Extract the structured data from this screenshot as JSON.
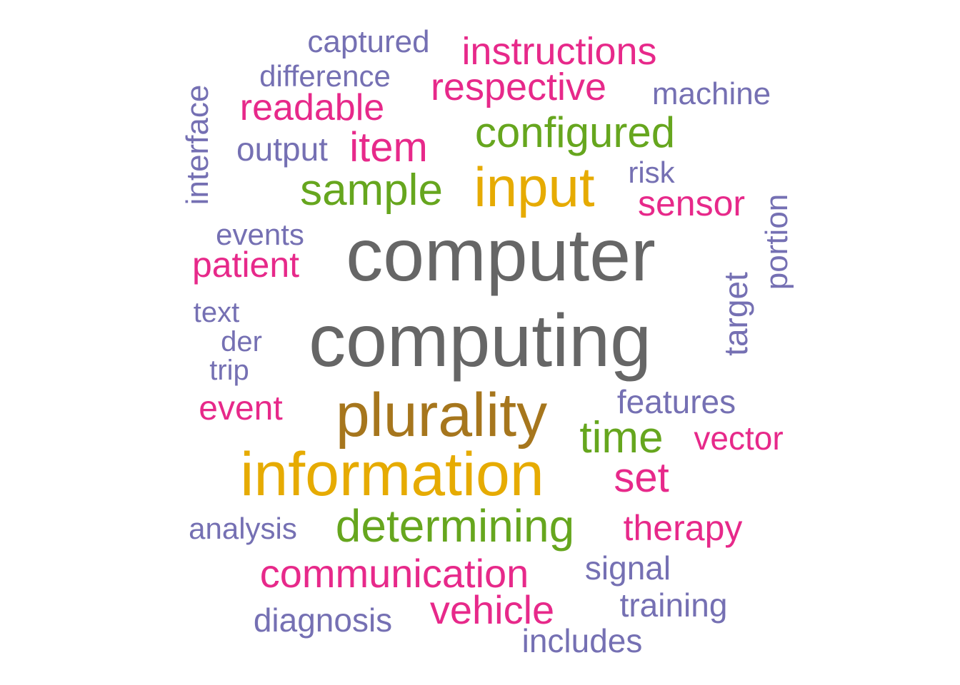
{
  "palette": {
    "gray": "#666666",
    "gold": "#E6AB02",
    "brown": "#A6761D",
    "green": "#66A61E",
    "pink": "#E7298A",
    "purple": "#7570B3"
  },
  "words": {
    "computer": "computer",
    "computing": "computing",
    "information": "information",
    "plurality": "plurality",
    "input": "input",
    "determining": "determining",
    "configured": "configured",
    "sample": "sample",
    "time": "time",
    "communication": "communication",
    "vehicle": "vehicle",
    "respective": "respective",
    "item": "item",
    "set": "set",
    "instructions": "instructions",
    "readable": "readable",
    "sensor": "sensor",
    "patient": "patient",
    "therapy": "therapy",
    "event": "event",
    "vector": "vector",
    "features": "features",
    "signal": "signal",
    "machine": "machine",
    "captured": "captured",
    "difference": "difference",
    "output": "output",
    "events": "events",
    "risk": "risk",
    "analysis": "analysis",
    "diagnosis": "diagnosis",
    "training": "training",
    "includes": "includes",
    "text": "text",
    "der": "der",
    "trip": "trip",
    "interface": "interface",
    "target": "target",
    "portion": "portion"
  }
}
